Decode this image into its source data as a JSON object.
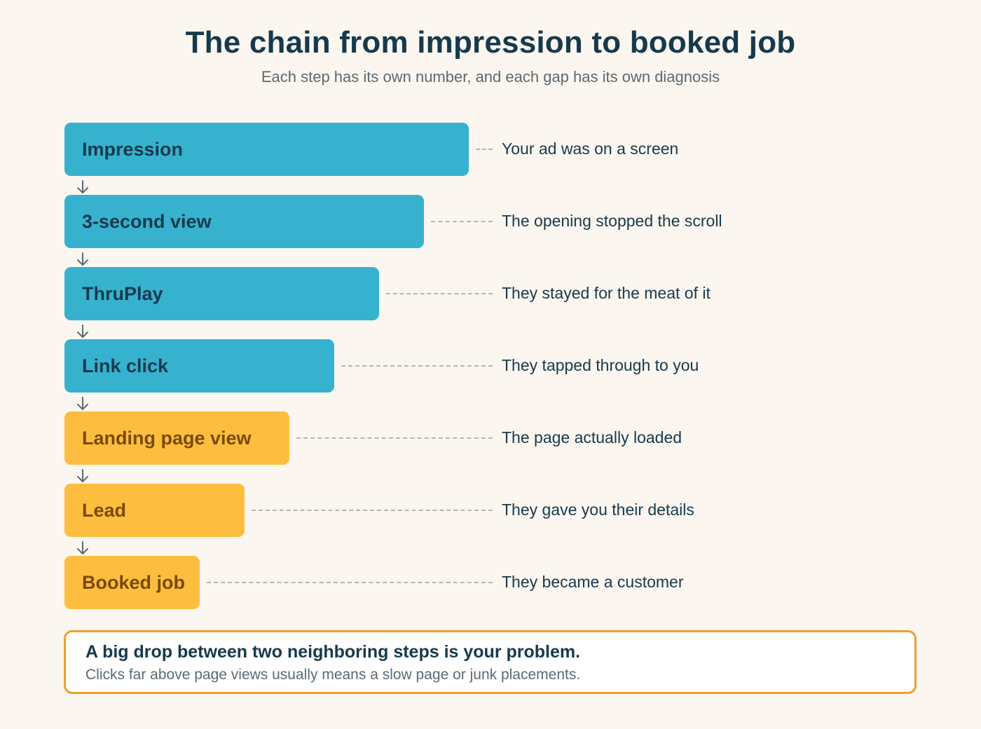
{
  "header": {
    "title": "The chain from impression to booked job",
    "subtitle": "Each step has its own number, and each gap has its own diagnosis"
  },
  "steps": [
    {
      "label": "Impression",
      "description": "Your ad was on a screen",
      "color": "#36b2cf"
    },
    {
      "label": "3-second view",
      "description": "The opening stopped the scroll",
      "color": "#36b2cf"
    },
    {
      "label": "ThruPlay",
      "description": "They stayed for the meat of it",
      "color": "#36b2cf"
    },
    {
      "label": "Link click",
      "description": "They tapped through to you",
      "color": "#36b2cf"
    },
    {
      "label": "Landing page view",
      "description": "The page actually loaded",
      "color": "#fdbe3f"
    },
    {
      "label": "Lead",
      "description": "They gave you their details",
      "color": "#fdbe3f"
    },
    {
      "label": "Booked job",
      "description": "They became a customer",
      "color": "#fdbe3f"
    }
  ],
  "callout": {
    "heading": "A big drop between two neighboring steps is your problem.",
    "body": "Clicks far above page views usually means a slow page or junk placements.",
    "border_color": "#ee9f2f"
  },
  "colors": {
    "background": "#fbf6ef",
    "text_dark": "#163a4c",
    "text_muted": "#5c6a72",
    "blue_step": "#36b2cf",
    "yellow_step": "#fdbe3f",
    "yellow_text": "#7a4a05"
  }
}
